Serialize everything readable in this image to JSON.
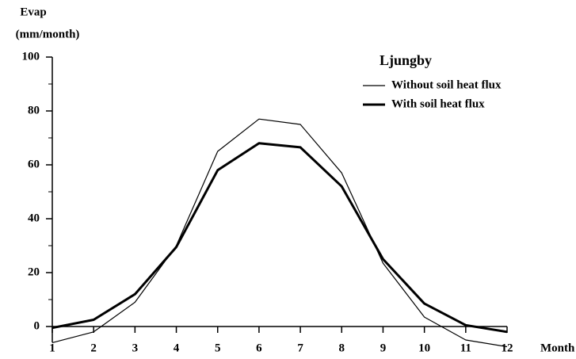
{
  "chart_data": {
    "type": "line",
    "title": "Ljungby",
    "ylabel": [
      "Evap",
      "(mm/month)"
    ],
    "xlabel": "Month",
    "x": [
      1,
      2,
      3,
      4,
      5,
      6,
      7,
      8,
      9,
      10,
      11,
      12
    ],
    "series": [
      {
        "name": "Without soil heat flux",
        "color": "#000000",
        "width": 1.2,
        "values": [
          -6,
          -2,
          9,
          30,
          65,
          77,
          75,
          57,
          23.5,
          3.5,
          -5,
          -7.5
        ]
      },
      {
        "name": "With soil heat flux",
        "color": "#000000",
        "width": 3,
        "values": [
          -0.5,
          2.5,
          12,
          29.5,
          58,
          68,
          66.5,
          52,
          25,
          8.5,
          0.5,
          -2
        ]
      }
    ],
    "xlim": [
      1,
      12
    ],
    "xticks": [
      1,
      2,
      3,
      4,
      5,
      6,
      7,
      8,
      9,
      10,
      11,
      12
    ],
    "ylim": [
      0,
      100
    ],
    "yticks": [
      0,
      20,
      40,
      60,
      80,
      100
    ]
  }
}
